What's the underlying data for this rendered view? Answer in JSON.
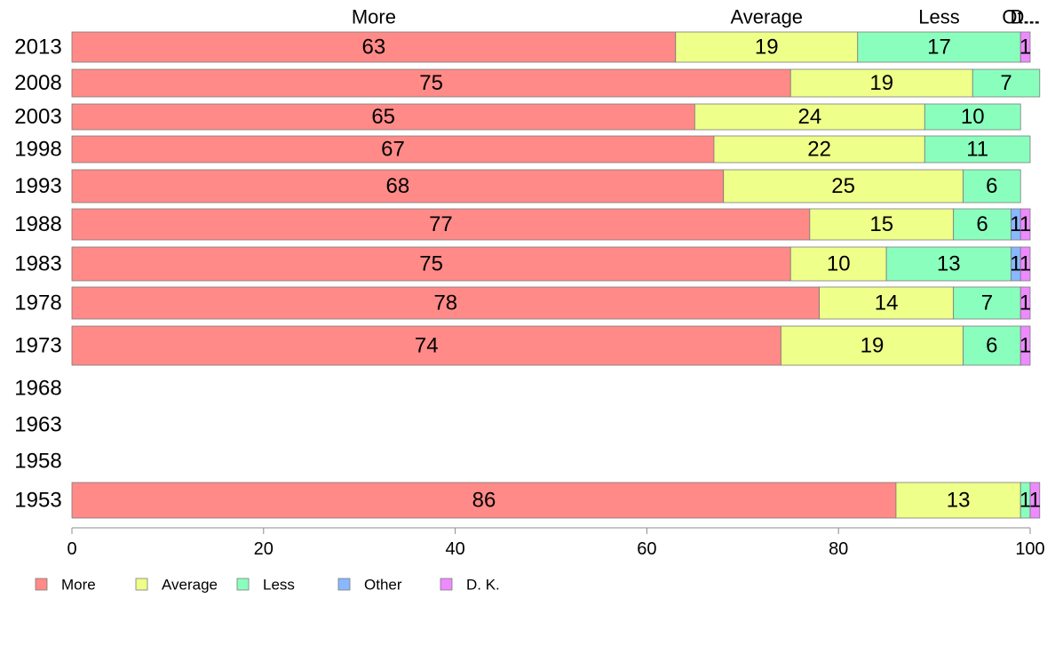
{
  "chart_data": {
    "type": "bar",
    "orientation": "horizontal",
    "stacked": true,
    "categories": [
      "2013",
      "2008",
      "2003",
      "1998",
      "1993",
      "1988",
      "1983",
      "1978",
      "1973",
      "1968",
      "1963",
      "1958",
      "1953"
    ],
    "series": [
      {
        "name": "More",
        "color": "#FF8A88",
        "values": [
          63,
          75,
          65,
          67,
          68,
          77,
          75,
          78,
          74,
          null,
          null,
          null,
          86
        ]
      },
      {
        "name": "Average",
        "color": "#EEFF8A",
        "values": [
          19,
          19,
          24,
          22,
          25,
          15,
          10,
          14,
          19,
          null,
          null,
          null,
          13
        ]
      },
      {
        "name": "Less",
        "color": "#8AFFBD",
        "values": [
          17,
          7,
          10,
          11,
          6,
          6,
          13,
          7,
          6,
          null,
          null,
          null,
          1
        ]
      },
      {
        "name": "Other",
        "color": "#8AB8FF",
        "values": [
          0,
          0,
          0,
          0,
          0,
          1,
          1,
          0,
          0,
          null,
          null,
          null,
          0
        ]
      },
      {
        "name": "D. K.",
        "color": "#EE8AFF",
        "values": [
          1,
          0,
          0,
          0,
          0,
          1,
          1,
          1,
          1,
          null,
          null,
          null,
          1
        ]
      }
    ],
    "top_labels": [
      "More",
      "Average",
      "Less",
      "Ot...",
      "D..."
    ],
    "xlim": [
      0,
      100
    ],
    "xticks": [
      0,
      20,
      40,
      60,
      80,
      100
    ],
    "title": "",
    "xlabel": "",
    "ylabel": "",
    "grid": false,
    "legend_position": "bottom-left"
  }
}
